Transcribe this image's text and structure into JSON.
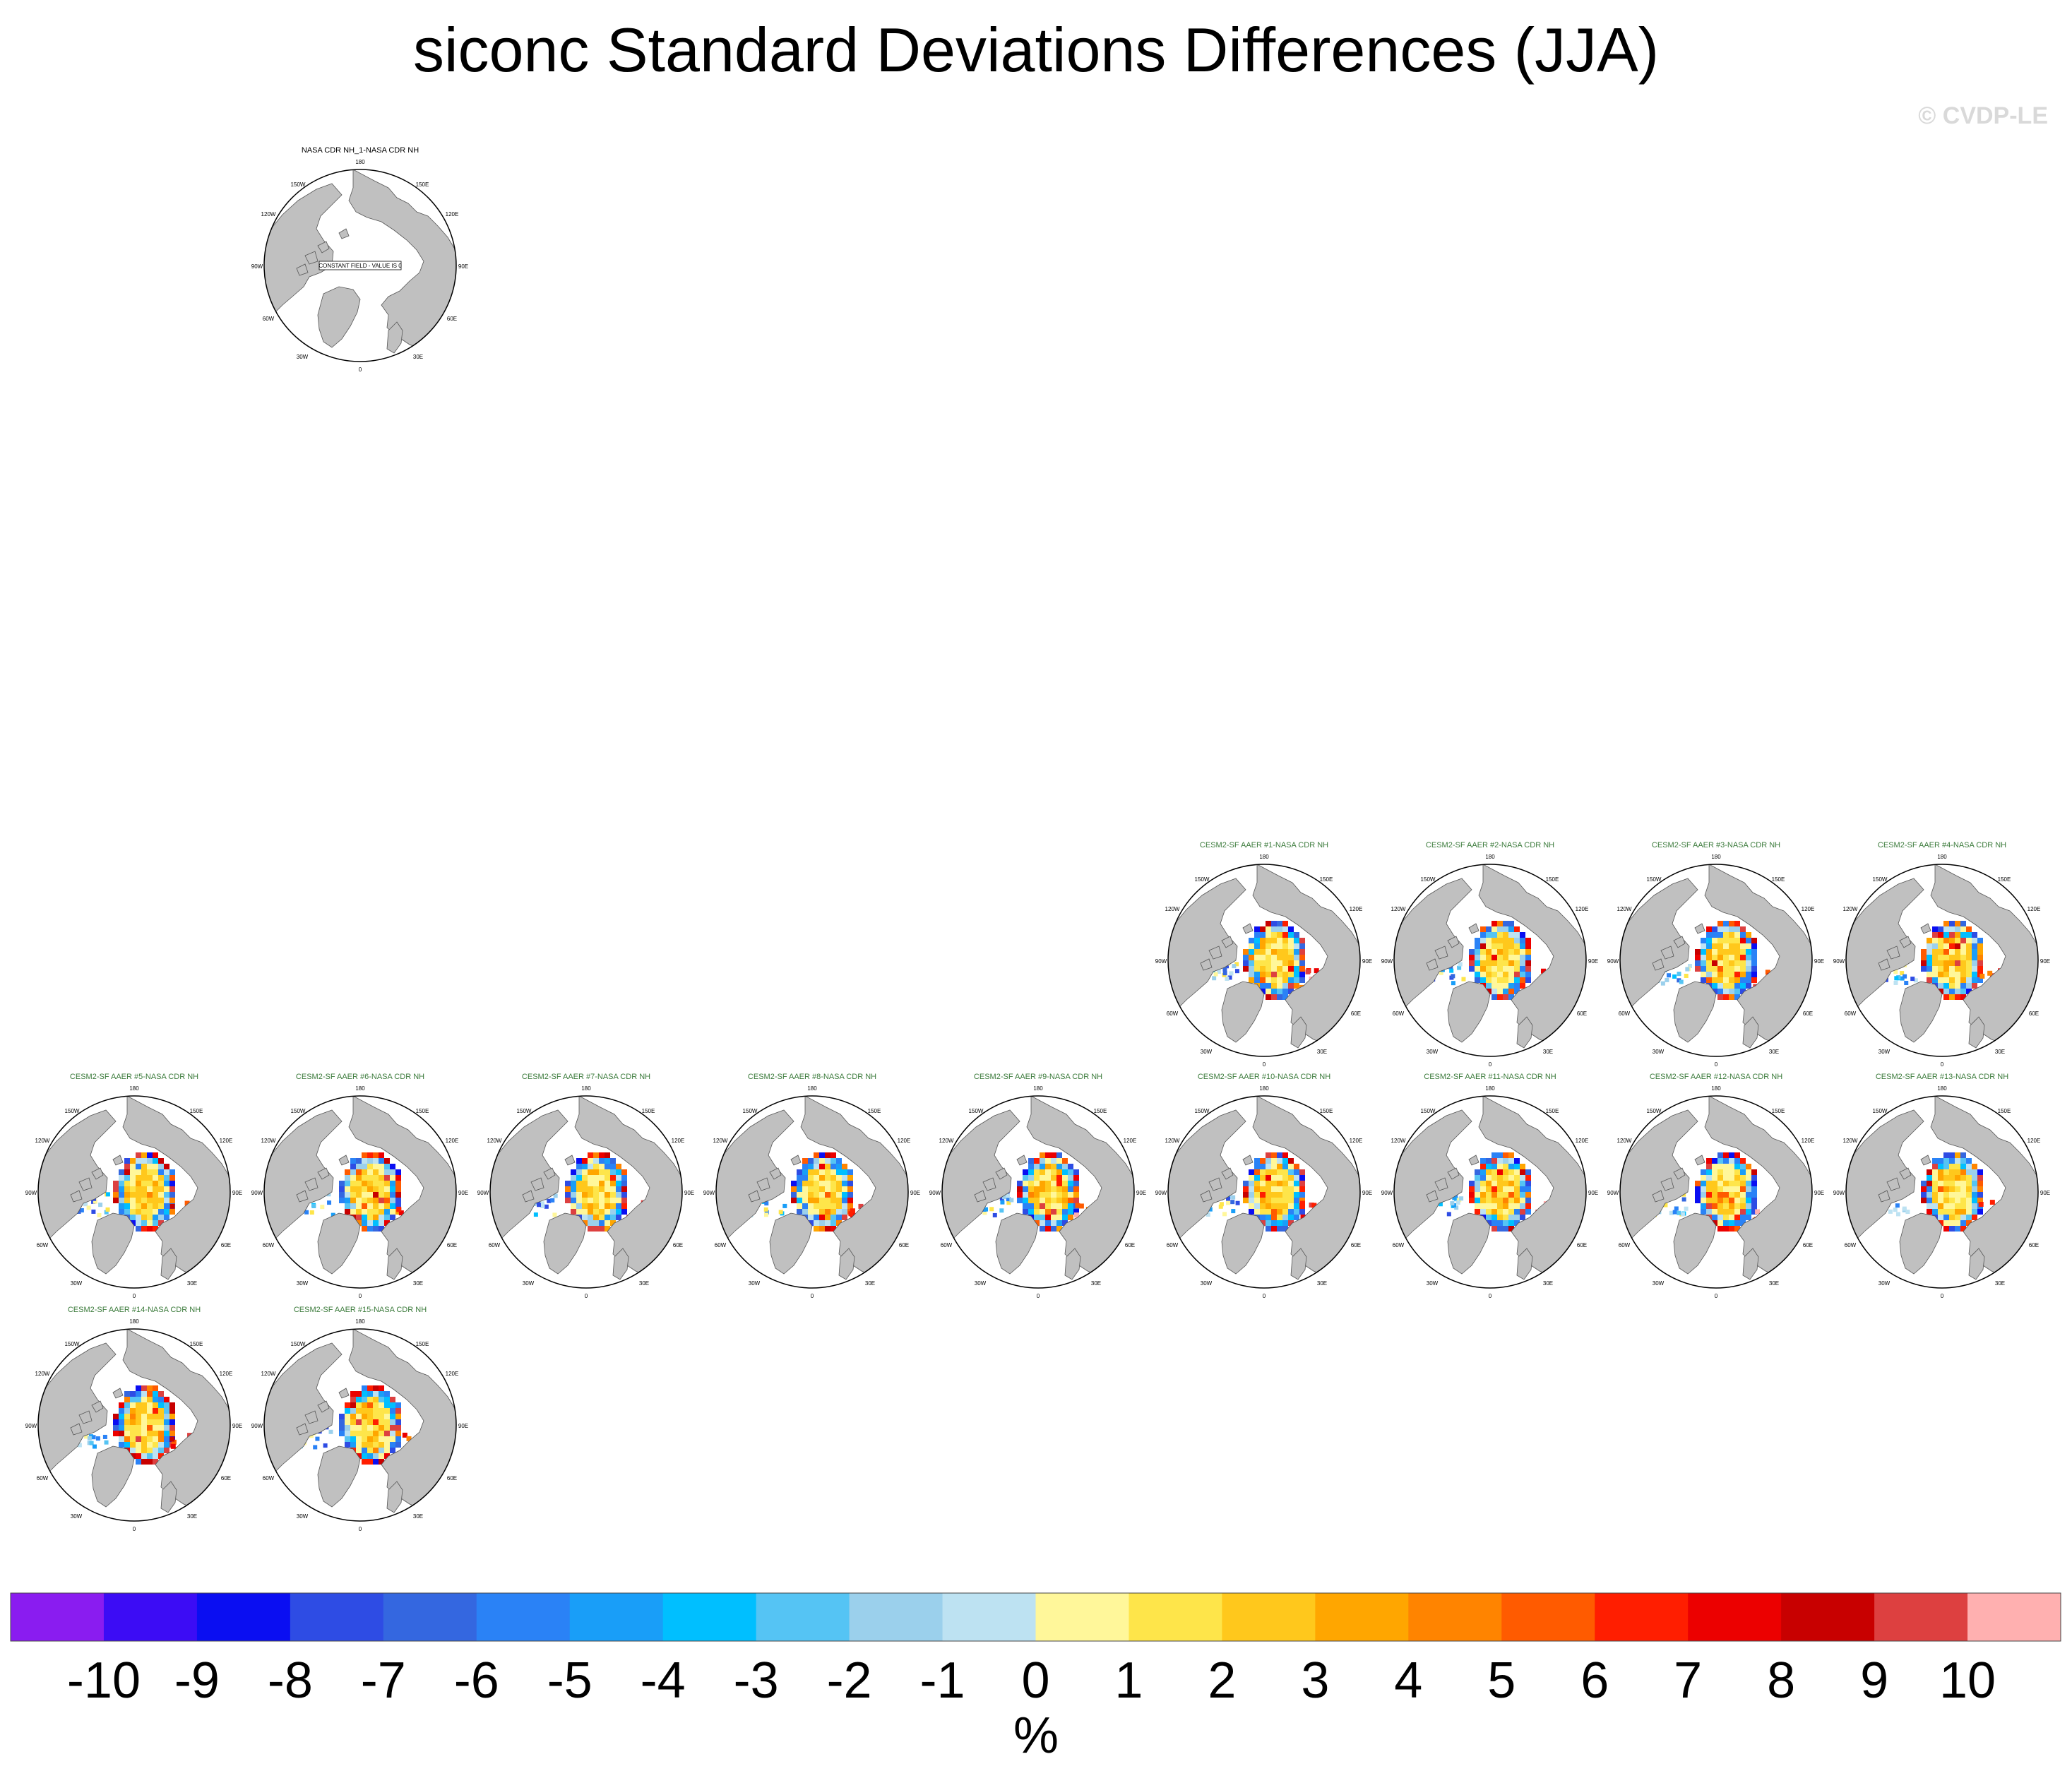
{
  "title": "siconc Standard Deviations Differences (JJA)",
  "watermark": "© CVDP-LE",
  "colors": {
    "land": "#c0c0c0",
    "ocean": "#ffffff",
    "obs_title": "#000000",
    "model_title": "#3a7a3a"
  },
  "panels": [
    {
      "title": "NASA CDR NH_1-NASA CDR NH",
      "kind": "obs",
      "note": "CONSTANT FIELD - VALUE IS 0"
    },
    {
      "title": "CESM2-SF AAER #1-NASA CDR NH",
      "kind": "model"
    },
    {
      "title": "CESM2-SF AAER #2-NASA CDR NH",
      "kind": "model"
    },
    {
      "title": "CESM2-SF AAER #3-NASA CDR NH",
      "kind": "model"
    },
    {
      "title": "CESM2-SF AAER #4-NASA CDR NH",
      "kind": "model"
    },
    {
      "title": "CESM2-SF AAER #5-NASA CDR NH",
      "kind": "model"
    },
    {
      "title": "CESM2-SF AAER #6-NASA CDR NH",
      "kind": "model"
    },
    {
      "title": "CESM2-SF AAER #7-NASA CDR NH",
      "kind": "model"
    },
    {
      "title": "CESM2-SF AAER #8-NASA CDR NH",
      "kind": "model"
    },
    {
      "title": "CESM2-SF AAER #9-NASA CDR NH",
      "kind": "model"
    },
    {
      "title": "CESM2-SF AAER #10-NASA CDR NH",
      "kind": "model"
    },
    {
      "title": "CESM2-SF AAER #11-NASA CDR NH",
      "kind": "model"
    },
    {
      "title": "CESM2-SF AAER #12-NASA CDR NH",
      "kind": "model"
    },
    {
      "title": "CESM2-SF AAER #13-NASA CDR NH",
      "kind": "model"
    },
    {
      "title": "CESM2-SF AAER #14-NASA CDR NH",
      "kind": "model"
    },
    {
      "title": "CESM2-SF AAER #15-NASA CDR NH",
      "kind": "model"
    }
  ],
  "map_labels": [
    "180",
    "150W",
    "150E",
    "120W",
    "120E",
    "90W",
    "90E",
    "60W",
    "60E",
    "30W",
    "30E",
    "0"
  ],
  "chart_data": {
    "type": "heatmap",
    "title": "siconc Standard Deviations Differences (JJA)",
    "projection": "polar stereographic, Northern Hemisphere",
    "units": "%",
    "colorbar": {
      "levels": [
        -10,
        -9,
        -8,
        -7,
        -6,
        -5,
        -4,
        -3,
        -2,
        -1,
        0,
        1,
        2,
        3,
        4,
        5,
        6,
        7,
        8,
        9,
        10
      ],
      "tick_labels": [
        "-10",
        "-9",
        "-8",
        "-7",
        "-6",
        "-5",
        "-4",
        "-3",
        "-2",
        "-1",
        "0",
        "1",
        "2",
        "3",
        "4",
        "5",
        "6",
        "7",
        "8",
        "9",
        "10"
      ],
      "colors": [
        "#8a1cf0",
        "#3c0cf5",
        "#0a0ef2",
        "#2e4ce4",
        "#3467e0",
        "#2a82f6",
        "#199ef8",
        "#00bfff",
        "#55c4f4",
        "#9bd0ec",
        "#bde2f2",
        "#fff79a",
        "#fee54a",
        "#ffc81c",
        "#ffa600",
        "#ff8400",
        "#ff5b00",
        "#ff1e00",
        "#ec0000",
        "#c80000",
        "#dd4040",
        "#ffb0b0"
      ],
      "label": "%"
    },
    "obs_panel_note": "CONSTANT FIELD - VALUE IS 0"
  }
}
